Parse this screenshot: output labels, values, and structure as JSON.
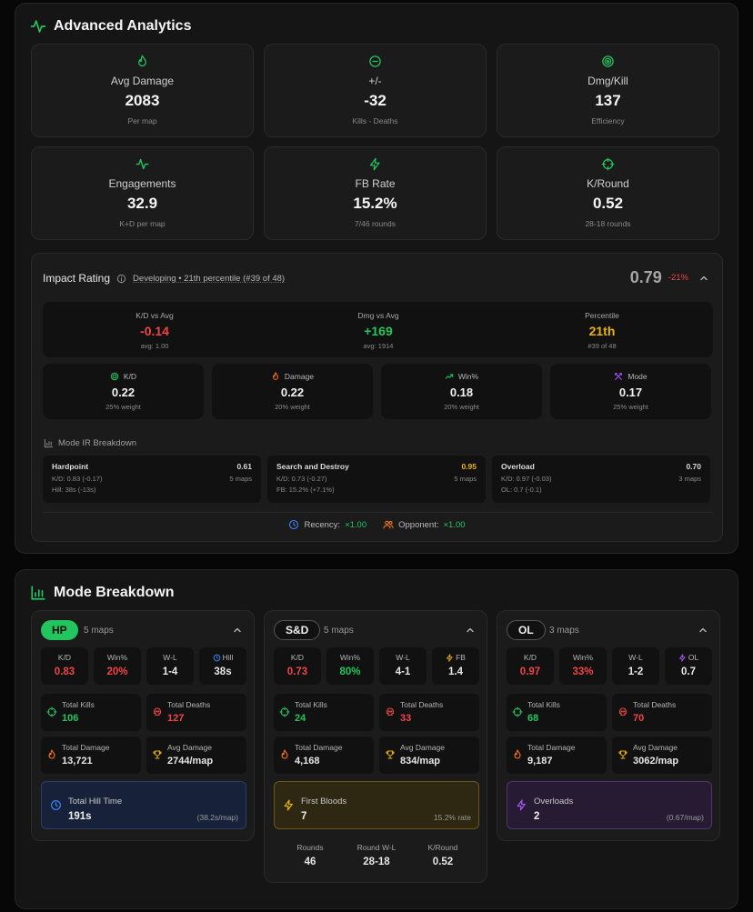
{
  "colors": {
    "green": "#22c55e",
    "red": "#ef4444",
    "yellow": "#eab308",
    "orange": "#f97316",
    "purple": "#a855f7",
    "blue": "#3b82f6"
  },
  "analytics": {
    "title": "Advanced Analytics",
    "title_icon": "activity-icon",
    "cards": [
      {
        "label": "Avg Damage",
        "value": "2083",
        "sub": "Per map",
        "icon": "flame-icon"
      },
      {
        "label": "+/-",
        "value": "-32",
        "sub": "Kills - Deaths",
        "icon": "minus-circle-icon"
      },
      {
        "label": "Dmg/Kill",
        "value": "137",
        "sub": "Efficiency",
        "icon": "target-icon"
      },
      {
        "label": "Engagements",
        "value": "32.9",
        "sub": "K+D per map",
        "icon": "activity-icon"
      },
      {
        "label": "FB Rate",
        "value": "15.2%",
        "sub": "7/46 rounds",
        "icon": "zap-icon"
      },
      {
        "label": "K/Round",
        "value": "0.52",
        "sub": "28-18 rounds",
        "icon": "crosshair-icon"
      }
    ]
  },
  "impact": {
    "title": "Impact Rating",
    "status": "Developing • 21th percentile (#39 of 48)",
    "score": "0.79",
    "change": "-21%",
    "comparisons": [
      {
        "label": "K/D vs Avg",
        "value": "-0.14",
        "sub": "avg: 1.00"
      },
      {
        "label": "Dmg vs Avg",
        "value": "+169",
        "sub": "avg: 1914"
      },
      {
        "label": "Percentile",
        "value": "21th",
        "sub": "#39 of 48"
      }
    ],
    "weights": [
      {
        "label": "K/D",
        "value": "0.22",
        "sub": "25% weight",
        "icon": "target-icon"
      },
      {
        "label": "Damage",
        "value": "0.22",
        "sub": "20% weight",
        "icon": "flame-icon"
      },
      {
        "label": "Win%",
        "value": "0.18",
        "sub": "20% weight",
        "icon": "trending-up-icon"
      },
      {
        "label": "Mode",
        "value": "0.17",
        "sub": "25% weight",
        "icon": "swords-icon"
      }
    ],
    "mode_title": "Mode IR Breakdown",
    "modes": [
      {
        "name": "Hardpoint",
        "value": "0.61",
        "maps": "5 maps",
        "line1": "K/D: 0.83 (-0.17)",
        "line2": "Hill: 38s (-13s)"
      },
      {
        "name": "Search and Destroy",
        "value": "0.95",
        "maps": "5 maps",
        "line1": "K/D: 0.73 (-0.27)",
        "line2": "FB: 15.2% (+7.1%)"
      },
      {
        "name": "Overload",
        "value": "0.70",
        "maps": "3 maps",
        "line1": "K/D: 0.97 (-0.03)",
        "line2": "OL: 0.7 (-0.1)"
      }
    ],
    "recency_label": "Recency:",
    "recency_value": "×1.00",
    "opponent_label": "Opponent:",
    "opponent_value": "×1.00"
  },
  "mode_breakdown": {
    "title": "Mode Breakdown",
    "modes": [
      {
        "tag": "HP",
        "maps": "5 maps",
        "stats": [
          {
            "label": "K/D",
            "value": "0.83"
          },
          {
            "label": "Win%",
            "value": "20%"
          },
          {
            "label": "W-L",
            "value": "1-4"
          },
          {
            "label": "Hill",
            "value": "38s"
          }
        ],
        "totals": [
          {
            "label": "Total Kills",
            "value": "106"
          },
          {
            "label": "Total Deaths",
            "value": "127"
          },
          {
            "label": "Total Damage",
            "value": "13,721"
          },
          {
            "label": "Avg Damage",
            "value": "2744/map"
          }
        ],
        "highlight": {
          "label": "Total Hill Time",
          "value": "191s",
          "sub": "(38.2s/map)"
        }
      },
      {
        "tag": "S&D",
        "maps": "5 maps",
        "stats": [
          {
            "label": "K/D",
            "value": "0.73"
          },
          {
            "label": "Win%",
            "value": "80%"
          },
          {
            "label": "W-L",
            "value": "4-1"
          },
          {
            "label": "FB",
            "value": "1.4"
          }
        ],
        "totals": [
          {
            "label": "Total Kills",
            "value": "24"
          },
          {
            "label": "Total Deaths",
            "value": "33"
          },
          {
            "label": "Total Damage",
            "value": "4,168"
          },
          {
            "label": "Avg Damage",
            "value": "834/map"
          }
        ],
        "highlight": {
          "label": "First Bloods",
          "value": "7",
          "sub": "15.2% rate"
        },
        "rounds": [
          {
            "label": "Rounds",
            "value": "46"
          },
          {
            "label": "Round W-L",
            "value": "28-18"
          },
          {
            "label": "K/Round",
            "value": "0.52"
          }
        ]
      },
      {
        "tag": "OL",
        "maps": "3 maps",
        "stats": [
          {
            "label": "K/D",
            "value": "0.97"
          },
          {
            "label": "Win%",
            "value": "33%"
          },
          {
            "label": "W-L",
            "value": "1-2"
          },
          {
            "label": "OL",
            "value": "0.7"
          }
        ],
        "totals": [
          {
            "label": "Total Kills",
            "value": "68"
          },
          {
            "label": "Total Deaths",
            "value": "70"
          },
          {
            "label": "Total Damage",
            "value": "9,187"
          },
          {
            "label": "Avg Damage",
            "value": "3062/map"
          }
        ],
        "highlight": {
          "label": "Overloads",
          "value": "2",
          "sub": "(0.67/map)"
        }
      }
    ]
  }
}
